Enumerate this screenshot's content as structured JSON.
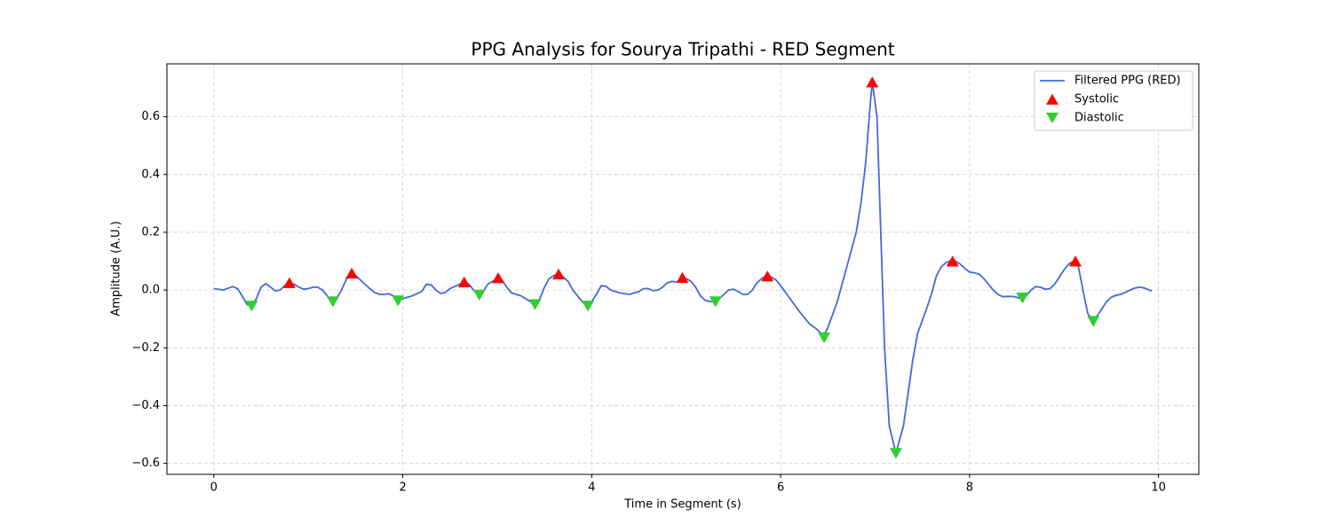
{
  "chart_data": {
    "type": "line",
    "title": "PPG Analysis for Sourya Tripathi - RED Segment",
    "xlabel": "Time in Segment (s)",
    "ylabel": "Amplitude (A.U.)",
    "xlim": [
      -0.4965,
      10.4265
    ],
    "ylim": [
      -0.638,
      0.783
    ],
    "xticks": [
      0,
      2,
      4,
      6,
      8,
      10
    ],
    "yticks": [
      {
        "value": -0.6,
        "label": "−0.6"
      },
      {
        "value": -0.4,
        "label": "−0.4"
      },
      {
        "value": -0.2,
        "label": "−0.2"
      },
      {
        "value": 0,
        "label": "0.0"
      },
      0.2,
      0.4,
      0.6
    ],
    "grid": true,
    "legend": "upper right",
    "series": [
      {
        "name": "Filtered PPG (RED)",
        "type": "line",
        "color": "#4169e1",
        "x": [
          0,
          0.1,
          0.2,
          0.25,
          0.3,
          0.35,
          0.4,
          0.45,
          0.5,
          0.55,
          0.6,
          0.65,
          0.7,
          0.75,
          0.8,
          0.85,
          0.9,
          0.95,
          1.0,
          1.05,
          1.1,
          1.15,
          1.2,
          1.25,
          1.3,
          1.35,
          1.4,
          1.45,
          1.5,
          1.55,
          1.6,
          1.65,
          1.7,
          1.75,
          1.8,
          1.85,
          1.9,
          1.95,
          2.0,
          2.1,
          2.2,
          2.25,
          2.3,
          2.35,
          2.4,
          2.45,
          2.5,
          2.6,
          2.65,
          2.7,
          2.75,
          2.8,
          2.85,
          2.9,
          3.0,
          3.05,
          3.1,
          3.15,
          3.2,
          3.25,
          3.3,
          3.35,
          3.4,
          3.45,
          3.5,
          3.55,
          3.6,
          3.65,
          3.7,
          3.75,
          3.8,
          3.85,
          3.9,
          3.95,
          4.0,
          4.05,
          4.1,
          4.15,
          4.2,
          4.3,
          4.4,
          4.5,
          4.55,
          4.6,
          4.65,
          4.7,
          4.75,
          4.8,
          4.85,
          4.9,
          4.95,
          5.0,
          5.05,
          5.1,
          5.15,
          5.2,
          5.25,
          5.3,
          5.35,
          5.4,
          5.45,
          5.5,
          5.55,
          5.6,
          5.65,
          5.7,
          5.75,
          5.8,
          5.85,
          5.9,
          5.95,
          6.0,
          6.1,
          6.2,
          6.3,
          6.4,
          6.45,
          6.5,
          6.6,
          6.7,
          6.8,
          6.85,
          6.9,
          6.95,
          6.97,
          7.02,
          7.1,
          7.15,
          7.22,
          7.3,
          7.4,
          7.45,
          7.55,
          7.6,
          7.65,
          7.7,
          7.75,
          7.8,
          7.85,
          7.9,
          7.95,
          8.0,
          8.05,
          8.1,
          8.15,
          8.2,
          8.25,
          8.3,
          8.35,
          8.4,
          8.45,
          8.5,
          8.55,
          8.6,
          8.65,
          8.7,
          8.75,
          8.8,
          8.85,
          8.9,
          8.95,
          9.0,
          9.05,
          9.1,
          9.15,
          9.2,
          9.25,
          9.3,
          9.35,
          9.4,
          9.45,
          9.5,
          9.55,
          9.6,
          9.65,
          9.7,
          9.75,
          9.8,
          9.85,
          9.9,
          9.93
        ],
        "values": [
          0.005,
          0.0,
          0.012,
          0.005,
          -0.02,
          -0.05,
          -0.055,
          -0.03,
          0.01,
          0.022,
          0.01,
          -0.003,
          0.0,
          0.015,
          0.025,
          0.02,
          0.01,
          0.003,
          0.005,
          0.01,
          0.01,
          0.0,
          -0.02,
          -0.04,
          -0.03,
          0.0,
          0.035,
          0.055,
          0.05,
          0.035,
          0.02,
          0.005,
          -0.008,
          -0.015,
          -0.015,
          -0.013,
          -0.02,
          -0.035,
          -0.03,
          -0.02,
          -0.005,
          0.02,
          0.018,
          0.0,
          -0.012,
          -0.008,
          0.005,
          0.02,
          0.028,
          0.02,
          0.0,
          -0.015,
          -0.005,
          0.02,
          0.04,
          0.035,
          0.01,
          -0.01,
          -0.015,
          -0.02,
          -0.03,
          -0.04,
          -0.05,
          -0.03,
          0.01,
          0.04,
          0.05,
          0.055,
          0.045,
          0.03,
          0.0,
          -0.02,
          -0.04,
          -0.055,
          -0.04,
          -0.015,
          0.015,
          0.013,
          0.0,
          -0.01,
          -0.015,
          -0.005,
          0.005,
          0.005,
          -0.002,
          0.0,
          0.01,
          0.025,
          0.03,
          0.028,
          0.035,
          0.04,
          0.03,
          0.01,
          -0.02,
          -0.035,
          -0.04,
          -0.04,
          -0.03,
          -0.015,
          0.0,
          0.003,
          -0.005,
          -0.015,
          -0.015,
          0.0,
          0.025,
          0.04,
          0.05,
          0.045,
          0.035,
          0.015,
          -0.03,
          -0.075,
          -0.115,
          -0.14,
          -0.16,
          -0.13,
          -0.04,
          0.08,
          0.2,
          0.3,
          0.44,
          0.65,
          0.72,
          0.6,
          -0.2,
          -0.47,
          -0.565,
          -0.47,
          -0.24,
          -0.15,
          -0.06,
          -0.01,
          0.05,
          0.08,
          0.095,
          0.1,
          0.1,
          0.09,
          0.075,
          0.062,
          0.06,
          0.055,
          0.04,
          0.02,
          0.0,
          -0.015,
          -0.023,
          -0.022,
          -0.022,
          -0.025,
          -0.03,
          -0.02,
          0.0,
          0.012,
          0.01,
          0.003,
          0.005,
          0.02,
          0.045,
          0.07,
          0.09,
          0.1,
          0.085,
          0.0,
          -0.08,
          -0.105,
          -0.09,
          -0.065,
          -0.04,
          -0.025,
          -0.018,
          -0.015,
          -0.008,
          0.0,
          0.007,
          0.01,
          0.007,
          0.0,
          -0.003
        ]
      },
      {
        "name": "Systolic",
        "type": "scatter",
        "marker": "triangle-up",
        "color": "#ff0000",
        "x": [
          0.8,
          1.46,
          2.65,
          3.01,
          3.65,
          4.96,
          5.86,
          6.97,
          7.82,
          9.12
        ],
        "values": [
          0.025,
          0.058,
          0.028,
          0.042,
          0.055,
          0.043,
          0.048,
          0.72,
          0.1,
          0.1
        ]
      },
      {
        "name": "Diastolic",
        "type": "scatter",
        "marker": "triangle-down",
        "color": "#32cd32",
        "x": [
          0.4,
          1.26,
          1.95,
          2.81,
          3.4,
          3.96,
          5.31,
          6.46,
          7.22,
          8.56,
          9.31
        ],
        "values": [
          -0.055,
          -0.04,
          -0.037,
          -0.017,
          -0.05,
          -0.055,
          -0.04,
          -0.165,
          -0.565,
          -0.027,
          -0.108
        ]
      }
    ]
  }
}
